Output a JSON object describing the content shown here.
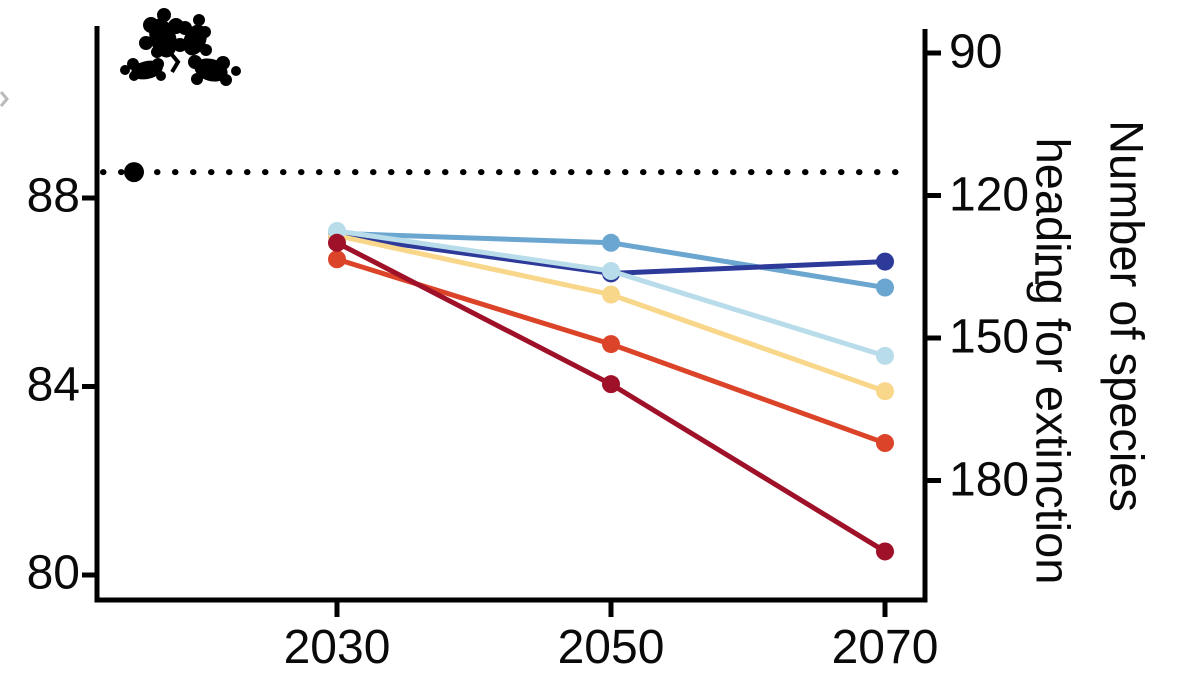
{
  "chart_data": {
    "type": "line",
    "title": "",
    "x": [
      2030,
      2050,
      2070
    ],
    "x_tick_labels": [
      "2030",
      "2050",
      "2070"
    ],
    "left_axis": {
      "tick_labels": [
        "88",
        "84",
        "80"
      ],
      "tick_values": [
        88,
        84,
        80
      ],
      "ylim": [
        79.4,
        91.6
      ]
    },
    "right_axis": {
      "title_line1": "Number of species",
      "title_line2": "heading for extinction",
      "tick_labels": [
        "90",
        "120",
        "150",
        "180"
      ],
      "tick_values": [
        90,
        120,
        150,
        180
      ]
    },
    "baseline": {
      "style": "dotted",
      "value_left_scale": 88.55,
      "has_marker_dot": true,
      "color": "#000000"
    },
    "series": [
      {
        "name": "medium-blue",
        "color": "#6aa6cf",
        "values": [
          87.25,
          87.05,
          86.1
        ]
      },
      {
        "name": "dark-blue",
        "color": "#2d3a9a",
        "values": [
          87.2,
          86.4,
          86.65
        ]
      },
      {
        "name": "yellow",
        "color": "#f8d68a",
        "values": [
          87.2,
          85.95,
          83.9
        ]
      },
      {
        "name": "light-blue",
        "color": "#b9dcea",
        "values": [
          87.3,
          86.45,
          84.65
        ]
      },
      {
        "name": "orange",
        "color": "#dc4429",
        "values": [
          86.7,
          84.9,
          82.8
        ]
      },
      {
        "name": "dark-red",
        "color": "#9f1128",
        "values": [
          87.05,
          84.05,
          80.5
        ]
      }
    ],
    "marker": "filled-circle",
    "grid": false,
    "legend": "none",
    "icon": "oak-leaves"
  }
}
